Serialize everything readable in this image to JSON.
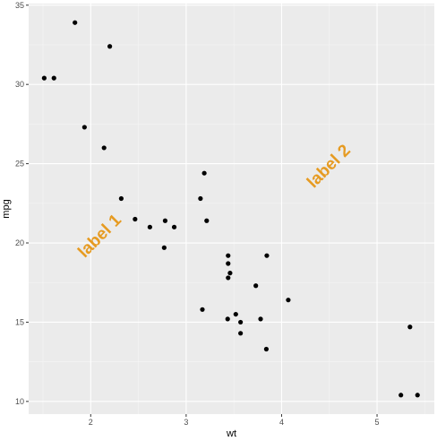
{
  "chart_data": {
    "type": "scatter",
    "title": "",
    "xlabel": "wt",
    "ylabel": "mpg",
    "xlim": [
      1.35,
      5.6
    ],
    "ylim": [
      9.2,
      35.1
    ],
    "x_ticks": [
      2,
      3,
      4,
      5
    ],
    "y_ticks": [
      10,
      15,
      20,
      25,
      30,
      35
    ],
    "x_tick_labels": [
      "2",
      "3",
      "4",
      "5"
    ],
    "y_tick_labels": [
      "10",
      "15",
      "20",
      "25",
      "30",
      "35"
    ],
    "grid": true,
    "legend": "none",
    "colors": {
      "panel": "#ebebeb",
      "grid_major": "#ffffff",
      "point": "#000000",
      "annotation": "#e69b22"
    },
    "points": [
      {
        "x": 1.513,
        "y": 30.4
      },
      {
        "x": 1.615,
        "y": 30.4
      },
      {
        "x": 1.835,
        "y": 33.9
      },
      {
        "x": 1.935,
        "y": 27.3
      },
      {
        "x": 2.14,
        "y": 26.0
      },
      {
        "x": 2.2,
        "y": 32.4
      },
      {
        "x": 2.32,
        "y": 22.8
      },
      {
        "x": 2.465,
        "y": 21.5
      },
      {
        "x": 2.62,
        "y": 21.0
      },
      {
        "x": 2.77,
        "y": 19.7
      },
      {
        "x": 2.78,
        "y": 21.4
      },
      {
        "x": 2.875,
        "y": 21.0
      },
      {
        "x": 3.15,
        "y": 22.8
      },
      {
        "x": 3.17,
        "y": 15.8
      },
      {
        "x": 3.19,
        "y": 24.4
      },
      {
        "x": 3.215,
        "y": 21.4
      },
      {
        "x": 3.435,
        "y": 15.2
      },
      {
        "x": 3.44,
        "y": 18.7
      },
      {
        "x": 3.44,
        "y": 17.8
      },
      {
        "x": 3.44,
        "y": 19.2
      },
      {
        "x": 3.46,
        "y": 18.1
      },
      {
        "x": 3.52,
        "y": 15.5
      },
      {
        "x": 3.57,
        "y": 14.3
      },
      {
        "x": 3.57,
        "y": 15.0
      },
      {
        "x": 3.73,
        "y": 17.3
      },
      {
        "x": 3.78,
        "y": 15.2
      },
      {
        "x": 3.84,
        "y": 13.3
      },
      {
        "x": 3.845,
        "y": 19.2
      },
      {
        "x": 4.07,
        "y": 16.4
      },
      {
        "x": 5.25,
        "y": 10.4
      },
      {
        "x": 5.345,
        "y": 14.7
      },
      {
        "x": 5.424,
        "y": 10.4
      }
    ],
    "annotations": [
      {
        "text": "label 1",
        "x": 2.1,
        "y": 20.4,
        "angle": 45
      },
      {
        "text": "label 2",
        "x": 4.5,
        "y": 24.8,
        "angle": 45
      }
    ]
  }
}
